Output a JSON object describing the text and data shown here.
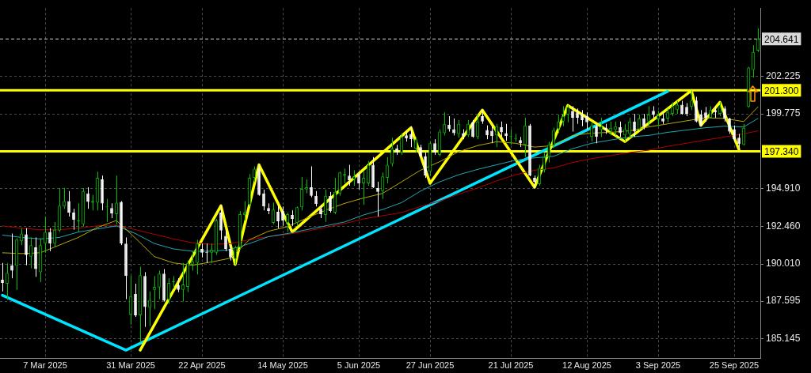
{
  "chart_data": {
    "type": "candlestick",
    "marker": "none",
    "grid": true,
    "colors": [
      "#ffffff",
      "#00c000",
      "#ffffff",
      "#00c000",
      "#00c000",
      "#ffffff",
      "#00c000",
      "#ffffff",
      "#00c000",
      "#00c000",
      "#ffffff",
      "#00c000",
      "#00c000",
      "#00c000",
      "#ffffff",
      "#ffffff",
      "#00c000",
      "#00c000",
      "#ffffff",
      "#00c000",
      "#00c000",
      "#ffffff",
      "#00c000",
      "#ffffff",
      "#00c000",
      "#ffffff",
      "#ffffff",
      "#00c000",
      "#ffffff",
      "#00c000",
      "#ffffff",
      "#00c000",
      "#00c000",
      "#00c000",
      "#ffffff",
      "#00c000",
      "#00c000",
      "#ffffff",
      "#00c000",
      "#00c000",
      "#00c000",
      "#00c000",
      "#ffffff",
      "#ffffff",
      "#00c000",
      "#00c000",
      "#ffffff",
      "#ffffff",
      "#ffffff",
      "#00c000",
      "#00c000",
      "#00c000",
      "#00c000",
      "#00c000",
      "#ffffff",
      "#ffffff",
      "#ffffff",
      "#00c000",
      "#ffffff",
      "#ffffff",
      "#00c000",
      "#ffffff",
      "#00c000",
      "#00c000",
      "#00c000",
      "#ffffff",
      "#ffffff",
      "#ffffff",
      "#00c000",
      "#ffffff",
      "#00c000",
      "#00c000",
      "#00c000",
      "#ffffff",
      "#00c000",
      "#ffffff",
      "#00c000",
      "#00c000",
      "#ffffff",
      "#ffffff",
      "#00c000",
      "#00c000",
      "#00c000",
      "#ffffff",
      "#00c000",
      "#ffffff",
      "#ffffff",
      "#00c000",
      "#ffffff",
      "#ffffff",
      "#00c000",
      "#ffffff",
      "#00c000",
      "#00c000",
      "#ffffff",
      "#ffffff",
      "#00c000",
      "#ffffff",
      "#00c000",
      "#ffffff",
      "#00c000",
      "#ffffff",
      "#ffffff",
      "#ffffff",
      "#00c000",
      "#ffffff",
      "#ffffff",
      "#00c000",
      "#00c000",
      "#ffffff",
      "#00c000",
      "#ffffff",
      "#ffffff",
      "#00c000",
      "#00c000",
      "#00c000",
      "#00c000",
      "#00c000",
      "#00c000",
      "#00c000",
      "#ffffff",
      "#ffffff",
      "#ffffff",
      "#ffffff",
      "#00c000",
      "#ffffff",
      "#00c000",
      "#ffffff",
      "#00c000",
      "#00c000",
      "#ffffff",
      "#00c000",
      "#00c000",
      "#ffffff",
      "#00c000",
      "#ffffff",
      "#00c000",
      "#ffffff",
      "#00c000",
      "#ffffff",
      "#00c000",
      "#00c000",
      "#00c000",
      "#ffffff",
      "#ffffff",
      "#00c000",
      "#ffffff",
      "#ffffff",
      "#ffffff",
      "#00c000",
      "#ffffff",
      "#00c000",
      "#ffffff",
      "#ffffff",
      "#ffffff",
      "#ffffff",
      "#00c000",
      "#00c000",
      "#00c000",
      "#00c000"
    ],
    "categories": [
      null,
      null,
      null,
      null,
      null,
      null,
      null,
      null,
      null,
      "7 Mar 2025",
      null,
      null,
      null,
      null,
      null,
      null,
      null,
      null,
      null,
      null,
      null,
      null,
      null,
      null,
      null,
      null,
      null,
      "31 Mar 2025",
      null,
      null,
      null,
      null,
      null,
      null,
      null,
      null,
      null,
      null,
      null,
      null,
      null,
      null,
      "22 Apr 2025",
      null,
      null,
      null,
      null,
      null,
      null,
      null,
      null,
      null,
      null,
      null,
      null,
      null,
      null,
      null,
      null,
      "14 May 2025",
      null,
      null,
      null,
      null,
      null,
      null,
      null,
      null,
      null,
      null,
      null,
      null,
      null,
      null,
      null,
      "5 Jun 2025",
      null,
      null,
      null,
      null,
      null,
      null,
      null,
      null,
      null,
      null,
      null,
      null,
      null,
      null,
      "27 Jun 2025",
      null,
      null,
      null,
      null,
      null,
      null,
      null,
      null,
      null,
      null,
      null,
      null,
      null,
      null,
      null,
      null,
      "21 Jul 2025",
      null,
      null,
      null,
      null,
      null,
      null,
      null,
      null,
      null,
      null,
      null,
      null,
      null,
      null,
      null,
      "12 Aug 2025",
      null,
      null,
      null,
      null,
      null,
      null,
      null,
      null,
      null,
      null,
      null,
      null,
      null,
      null,
      "3 Sep 2025",
      null,
      null,
      null,
      null,
      null,
      null,
      null,
      null,
      null,
      null,
      null,
      null,
      null,
      null,
      null,
      "25 Sep 2025",
      null,
      null,
      null,
      null,
      null
    ],
    "ohlc": [
      [
        188.98,
        190.08,
        188.23,
        188.78
      ],
      [
        188.73,
        190.08,
        187.67,
        189.43
      ],
      [
        189.93,
        191.99,
        189.08,
        189.58
      ],
      [
        189.88,
        191.69,
        188.33,
        191.59
      ],
      [
        191.49,
        192.34,
        191.24,
        191.99
      ],
      [
        191.94,
        192.34,
        189.93,
        190.59
      ],
      [
        190.49,
        191.74,
        189.73,
        191.24
      ],
      [
        191.09,
        191.74,
        189.18,
        189.68
      ],
      [
        189.48,
        191.69,
        188.83,
        191.24
      ],
      [
        191.34,
        193.1,
        190.74,
        192.09
      ],
      [
        192.09,
        192.34,
        190.84,
        191.34
      ],
      [
        191.34,
        192.74,
        191.09,
        192.24
      ],
      [
        192.19,
        194.95,
        192.09,
        193.8
      ],
      [
        193.75,
        194.95,
        193.6,
        194.1
      ],
      [
        194.1,
        194.75,
        193.1,
        193.35
      ],
      [
        193.35,
        193.6,
        192.24,
        192.89
      ],
      [
        192.79,
        193.95,
        192.09,
        192.84
      ],
      [
        192.59,
        194.95,
        192.44,
        194.75
      ],
      [
        194.6,
        195.0,
        193.6,
        194.05
      ],
      [
        194.0,
        194.5,
        193.5,
        194.1
      ],
      [
        194.0,
        196.01,
        193.5,
        195.61
      ],
      [
        195.51,
        195.76,
        193.5,
        193.95
      ],
      [
        193.7,
        194.25,
        192.74,
        193.75
      ],
      [
        193.65,
        193.95,
        192.99,
        193.3
      ],
      [
        193.25,
        195.76,
        192.59,
        194.0
      ],
      [
        194.05,
        194.1,
        191.24,
        191.34
      ],
      [
        191.34,
        191.74,
        187.72,
        189.23
      ],
      [
        186.72,
        189.23,
        186.07,
        187.92
      ],
      [
        188.08,
        188.73,
        186.57,
        186.67
      ],
      [
        186.67,
        189.83,
        184.91,
        189.28
      ],
      [
        189.23,
        189.48,
        185.92,
        187.22
      ],
      [
        187.17,
        188.23,
        185.97,
        187.67
      ],
      [
        188.33,
        189.23,
        187.07,
        188.53
      ],
      [
        188.48,
        189.58,
        187.72,
        189.38
      ],
      [
        189.38,
        189.68,
        187.57,
        187.62
      ],
      [
        187.67,
        189.08,
        187.42,
        188.78
      ],
      [
        188.83,
        189.23,
        188.43,
        188.88
      ],
      [
        188.63,
        189.08,
        188.18,
        188.33
      ],
      [
        188.33,
        190.08,
        187.57,
        188.68
      ],
      [
        188.53,
        190.24,
        188.18,
        190.08
      ],
      [
        189.98,
        190.84,
        189.58,
        190.18
      ],
      [
        190.08,
        191.59,
        189.33,
        191.34
      ],
      [
        190.99,
        191.34,
        190.44,
        190.74
      ],
      [
        190.79,
        191.34,
        190.08,
        190.74
      ],
      [
        190.74,
        191.34,
        190.08,
        190.94
      ],
      [
        190.74,
        192.94,
        190.59,
        192.84
      ],
      [
        193.35,
        193.8,
        191.59,
        192.19
      ],
      [
        191.84,
        192.24,
        190.84,
        190.99
      ],
      [
        190.99,
        191.24,
        190.24,
        190.44
      ],
      [
        190.34,
        191.19,
        189.98,
        191.09
      ],
      [
        191.09,
        193.45,
        190.94,
        193.25
      ],
      [
        193.2,
        194.1,
        192.84,
        193.35
      ],
      [
        193.85,
        195.86,
        193.75,
        195.61
      ],
      [
        195.61,
        196.36,
        195.35,
        196.21
      ],
      [
        196.21,
        196.46,
        194.45,
        194.5
      ],
      [
        194.6,
        194.85,
        193.5,
        193.75
      ],
      [
        193.65,
        193.95,
        193.25,
        193.45
      ],
      [
        192.69,
        194.0,
        192.59,
        193.55
      ],
      [
        193.4,
        193.85,
        192.34,
        192.79
      ],
      [
        193.45,
        193.75,
        192.49,
        192.84
      ],
      [
        192.69,
        193.35,
        192.09,
        193.25
      ],
      [
        193.2,
        193.5,
        192.49,
        192.94
      ],
      [
        192.69,
        193.75,
        192.49,
        193.7
      ],
      [
        193.7,
        195.66,
        193.5,
        194.9
      ],
      [
        194.85,
        195.51,
        194.6,
        195.0
      ],
      [
        195.0,
        196.36,
        194.35,
        194.45
      ],
      [
        194.45,
        194.75,
        193.75,
        193.9
      ],
      [
        193.6,
        193.85,
        192.99,
        193.25
      ],
      [
        193.2,
        194.85,
        192.74,
        194.45
      ],
      [
        194.45,
        194.7,
        193.35,
        193.45
      ],
      [
        193.35,
        195.61,
        193.25,
        194.7
      ],
      [
        194.6,
        196.01,
        194.45,
        195.96
      ],
      [
        195.76,
        196.21,
        195.25,
        195.86
      ],
      [
        195.76,
        196.46,
        195.1,
        195.46
      ],
      [
        195.51,
        196.11,
        195.1,
        195.71
      ],
      [
        195.86,
        196.01,
        194.85,
        195.25
      ],
      [
        195.25,
        196.01,
        193.85,
        195.61
      ],
      [
        195.25,
        196.71,
        195.1,
        196.46
      ],
      [
        196.46,
        196.96,
        194.95,
        195.0
      ],
      [
        194.95,
        195.35,
        193.1,
        194.7
      ],
      [
        194.75,
        195.96,
        194.25,
        195.71
      ],
      [
        195.61,
        196.96,
        195.25,
        196.46
      ],
      [
        196.51,
        198.22,
        196.36,
        197.51
      ],
      [
        197.51,
        197.76,
        197.11,
        197.26
      ],
      [
        197.26,
        198.52,
        197.11,
        198.27
      ],
      [
        198.37,
        198.62,
        197.97,
        198.17
      ],
      [
        198.47,
        198.97,
        197.61,
        198.12
      ],
      [
        197.51,
        198.27,
        197.26,
        198.12
      ],
      [
        197.61,
        197.76,
        196.96,
        197.01
      ],
      [
        197.01,
        197.26,
        195.61,
        195.76
      ],
      [
        196.01,
        197.97,
        195.76,
        197.86
      ],
      [
        197.86,
        198.12,
        197.11,
        197.26
      ],
      [
        197.11,
        198.77,
        197.01,
        198.62
      ],
      [
        198.52,
        199.87,
        198.37,
        199.12
      ],
      [
        199.07,
        199.62,
        198.62,
        198.77
      ],
      [
        198.77,
        199.47,
        198.37,
        198.52
      ],
      [
        198.47,
        199.37,
        198.22,
        199.12
      ],
      [
        198.52,
        198.77,
        198.12,
        198.32
      ],
      [
        198.37,
        199.37,
        198.27,
        199.12
      ],
      [
        199.22,
        199.37,
        198.22,
        198.27
      ],
      [
        198.27,
        199.72,
        198.12,
        199.27
      ],
      [
        199.62,
        200.02,
        199.12,
        199.27
      ],
      [
        198.72,
        199.02,
        198.12,
        198.37
      ],
      [
        198.67,
        199.02,
        197.86,
        198.32
      ],
      [
        198.37,
        199.12,
        197.61,
        198.97
      ],
      [
        198.92,
        199.27,
        198.27,
        198.57
      ],
      [
        198.52,
        199.12,
        198.02,
        198.32
      ],
      [
        198.27,
        198.77,
        197.76,
        198.32
      ],
      [
        198.12,
        198.47,
        197.97,
        198.17
      ],
      [
        198.07,
        198.27,
        197.61,
        197.86
      ],
      [
        197.76,
        199.52,
        196.96,
        199.02
      ],
      [
        199.02,
        199.12,
        195.71,
        195.76
      ],
      [
        195.61,
        195.76,
        194.95,
        195.36
      ],
      [
        195.2,
        196.46,
        195.1,
        196.26
      ],
      [
        196.11,
        197.26,
        195.96,
        196.96
      ],
      [
        196.96,
        197.96,
        196.61,
        197.76
      ],
      [
        197.71,
        198.87,
        197.61,
        198.72
      ],
      [
        198.77,
        199.72,
        198.52,
        199.27
      ],
      [
        199.27,
        200.27,
        198.97,
        199.62
      ],
      [
        199.72,
        200.32,
        199.22,
        200.22
      ],
      [
        199.97,
        200.27,
        198.62,
        199.52
      ],
      [
        199.87,
        200.12,
        199.12,
        199.52
      ],
      [
        199.72,
        200.02,
        198.97,
        199.37
      ],
      [
        199.62,
        199.87,
        198.77,
        199.22
      ],
      [
        198.27,
        199.27,
        197.97,
        199.02
      ],
      [
        198.97,
        199.12,
        197.86,
        198.27
      ],
      [
        198.72,
        199.52,
        198.27,
        198.97
      ],
      [
        198.87,
        199.12,
        198.47,
        198.72
      ],
      [
        198.62,
        199.27,
        198.37,
        198.87
      ],
      [
        198.72,
        199.27,
        198.37,
        198.97
      ],
      [
        198.92,
        199.27,
        198.27,
        198.52
      ],
      [
        198.37,
        199.12,
        197.97,
        198.77
      ],
      [
        198.47,
        199.52,
        198.22,
        199.27
      ],
      [
        199.27,
        199.77,
        198.27,
        198.62
      ],
      [
        198.77,
        199.72,
        198.72,
        199.47
      ],
      [
        199.47,
        199.77,
        198.77,
        198.97
      ],
      [
        199.27,
        200.27,
        198.97,
        199.72
      ],
      [
        199.97,
        200.27,
        199.47,
        199.72
      ],
      [
        199.42,
        199.97,
        198.97,
        199.67
      ],
      [
        199.47,
        199.87,
        199.12,
        199.27
      ],
      [
        199.47,
        200.12,
        199.22,
        199.87
      ],
      [
        199.77,
        200.52,
        199.62,
        200.27
      ],
      [
        200.02,
        200.62,
        199.77,
        200.37
      ],
      [
        200.37,
        200.62,
        199.72,
        199.77
      ],
      [
        200.22,
        200.47,
        199.62,
        199.77
      ],
      [
        200.22,
        201.28,
        200.02,
        200.63
      ],
      [
        200.63,
        200.88,
        199.22,
        199.27
      ],
      [
        199.72,
        200.02,
        198.97,
        199.02
      ],
      [
        199.87,
        200.22,
        199.27,
        199.52
      ],
      [
        199.52,
        200.27,
        199.47,
        200.02
      ],
      [
        200.02,
        200.27,
        199.52,
        199.87
      ],
      [
        199.77,
        200.53,
        199.62,
        200.22
      ],
      [
        200.12,
        200.27,
        199.27,
        199.47
      ],
      [
        199.47,
        199.52,
        198.47,
        198.62
      ],
      [
        198.77,
        199.02,
        197.97,
        198.12
      ],
      [
        198.22,
        198.47,
        197.46,
        197.81
      ],
      [
        197.76,
        199.12,
        197.71,
        198.87
      ],
      [
        200.22,
        202.83,
        200.17,
        202.78
      ],
      [
        202.63,
        204.24,
        202.13,
        203.79
      ],
      [
        203.89,
        205.34,
        203.79,
        204.641
      ]
    ],
    "series": [
      {
        "type": "line",
        "color": "#b8a800",
        "values": [
          190.74,
          null,
          null,
          null,
          190.69,
          null,
          null,
          null,
          190.74,
          null,
          null,
          null,
          191.24,
          null,
          null,
          null,
          191.74,
          null,
          null,
          null,
          192.39,
          null,
          null,
          null,
          192.84,
          null,
          null,
          null,
          191.69,
          null,
          null,
          null,
          190.49,
          null,
          null,
          null,
          190.08,
          null,
          null,
          null,
          189.93,
          null,
          null,
          null,
          190.14,
          null,
          null,
          null,
          190.39,
          null,
          null,
          null,
          191.59,
          null,
          null,
          null,
          192.14,
          null,
          null,
          null,
          192.44,
          null,
          null,
          null,
          192.99,
          null,
          null,
          null,
          193.5,
          null,
          null,
          null,
          193.95,
          null,
          null,
          null,
          194.3,
          null,
          null,
          null,
          194.6,
          null,
          null,
          null,
          195.35,
          null,
          null,
          null,
          196.11,
          null,
          null,
          null,
          196.66,
          null,
          null,
          null,
          197.31,
          null,
          null,
          null,
          197.71,
          null,
          null,
          null,
          197.96,
          null,
          null,
          null,
          197.86,
          null,
          null,
          null,
          197.61,
          null,
          null,
          null,
          197.71,
          null,
          null,
          null,
          198.37,
          null,
          null,
          null,
          198.52,
          null,
          null,
          null,
          198.57,
          null,
          null,
          null,
          198.67,
          null,
          null,
          null,
          198.92,
          null,
          null,
          null,
          199.12,
          null,
          null,
          null,
          199.32,
          null,
          null,
          null,
          199.52,
          null,
          null,
          null,
          199.47,
          null,
          null,
          null,
          199.27,
          null,
          null,
          200.22
        ]
      },
      {
        "type": "line",
        "color": "#1fa8b0",
        "values": [
          191.89,
          null,
          null,
          null,
          191.74,
          null,
          null,
          null,
          191.64,
          null,
          null,
          null,
          191.74,
          null,
          null,
          null,
          192.09,
          null,
          null,
          null,
          192.29,
          null,
          null,
          null,
          192.49,
          null,
          null,
          null,
          191.99,
          null,
          null,
          null,
          191.34,
          null,
          null,
          null,
          190.99,
          null,
          null,
          null,
          190.84,
          null,
          null,
          null,
          190.84,
          null,
          null,
          null,
          190.94,
          null,
          null,
          null,
          191.34,
          null,
          null,
          null,
          191.79,
          null,
          null,
          null,
          191.99,
          null,
          null,
          null,
          192.24,
          null,
          null,
          null,
          192.49,
          null,
          null,
          null,
          192.74,
          null,
          null,
          null,
          193.2,
          null,
          null,
          null,
          193.55,
          null,
          null,
          null,
          194.0,
          null,
          null,
          null,
          194.75,
          null,
          null,
          null,
          195.35,
          null,
          null,
          null,
          195.81,
          null,
          null,
          null,
          196.16,
          null,
          null,
          null,
          196.46,
          null,
          null,
          null,
          196.76,
          null,
          null,
          null,
          196.91,
          null,
          null,
          null,
          197.01,
          null,
          null,
          null,
          197.51,
          null,
          null,
          null,
          197.86,
          null,
          null,
          null,
          198.07,
          null,
          null,
          null,
          198.27,
          null,
          null,
          null,
          198.37,
          null,
          null,
          null,
          198.57,
          null,
          null,
          null,
          198.72,
          null,
          null,
          null,
          198.87,
          null,
          null,
          null,
          198.97,
          null,
          null,
          null,
          198.92,
          null,
          null,
          199.47
        ]
      },
      {
        "type": "line",
        "color": "#b00000",
        "values": [
          192.49,
          null,
          null,
          null,
          192.34,
          null,
          null,
          null,
          192.24,
          null,
          null,
          null,
          192.24,
          null,
          null,
          null,
          192.34,
          null,
          null,
          null,
          192.49,
          null,
          null,
          null,
          192.54,
          null,
          null,
          null,
          192.24,
          null,
          null,
          null,
          191.94,
          null,
          null,
          null,
          191.64,
          null,
          null,
          null,
          191.39,
          null,
          null,
          null,
          191.29,
          null,
          null,
          null,
          191.34,
          null,
          null,
          null,
          191.59,
          null,
          null,
          null,
          191.79,
          null,
          null,
          null,
          191.94,
          null,
          null,
          null,
          192.14,
          null,
          null,
          null,
          192.39,
          null,
          null,
          null,
          192.64,
          null,
          null,
          null,
          192.94,
          null,
          null,
          null,
          193.15,
          null,
          null,
          null,
          193.35,
          null,
          null,
          null,
          193.75,
          null,
          null,
          null,
          194.1,
          null,
          null,
          null,
          194.55,
          null,
          null,
          null,
          194.95,
          null,
          null,
          null,
          195.41,
          null,
          null,
          null,
          195.81,
          null,
          null,
          null,
          196.11,
          null,
          null,
          null,
          196.26,
          null,
          null,
          null,
          196.61,
          null,
          null,
          null,
          196.86,
          null,
          null,
          null,
          197.06,
          null,
          null,
          null,
          197.26,
          null,
          null,
          null,
          197.41,
          null,
          null,
          null,
          197.66,
          null,
          null,
          null,
          197.86,
          null,
          null,
          null,
          198.07,
          null,
          null,
          null,
          198.27,
          null,
          null,
          null,
          198.47,
          null,
          null,
          198.67
        ]
      },
      {
        "type": "line",
        "color": "#ffff00",
        "values": [
          null,
          null,
          null,
          null,
          null,
          null,
          null,
          null,
          null,
          null,
          null,
          null,
          null,
          null,
          null,
          null,
          null,
          null,
          null,
          null,
          null,
          null,
          null,
          null,
          null,
          null,
          null,
          null,
          null,
          184.41,
          null,
          null,
          null,
          null,
          null,
          null,
          null,
          null,
          null,
          null,
          null,
          null,
          null,
          null,
          null,
          null,
          193.8,
          null,
          null,
          189.98,
          null,
          null,
          null,
          null,
          196.46,
          null,
          null,
          null,
          null,
          null,
          null,
          192.09,
          null,
          null,
          null,
          null,
          null,
          null,
          null,
          null,
          null,
          null,
          null,
          null,
          null,
          null,
          null,
          null,
          null,
          null,
          null,
          null,
          null,
          null,
          null,
          null,
          198.87,
          null,
          null,
          null,
          195.26,
          null,
          null,
          null,
          null,
          null,
          null,
          null,
          null,
          null,
          null,
          200.02,
          null,
          null,
          null,
          null,
          null,
          null,
          null,
          null,
          null,
          null,
          195.0,
          null,
          null,
          null,
          null,
          null,
          null,
          200.32,
          null,
          null,
          null,
          null,
          null,
          null,
          null,
          null,
          null,
          null,
          null,
          197.97,
          null,
          null,
          null,
          null,
          null,
          null,
          null,
          null,
          null,
          null,
          null,
          null,
          null,
          201.28,
          null,
          199.02,
          null,
          null,
          null,
          200.53,
          null,
          null,
          null,
          197.46,
          null,
          null,
          null,
          null
        ]
      },
      {
        "type": "line",
        "color": "#00e5ff",
        "values": [
          187.98,
          null,
          null,
          null,
          null,
          null,
          null,
          null,
          null,
          null,
          null,
          null,
          null,
          null,
          null,
          null,
          null,
          null,
          null,
          null,
          null,
          null,
          null,
          null,
          null,
          null,
          184.41,
          null,
          null,
          null,
          null,
          null,
          null,
          null,
          null,
          null,
          null,
          null,
          null,
          null,
          null,
          null,
          null,
          null,
          null,
          null,
          null,
          null,
          null,
          null,
          null,
          null,
          null,
          null,
          null,
          null,
          null,
          null,
          null,
          null,
          null,
          null,
          null,
          null,
          null,
          null,
          null,
          null,
          null,
          null,
          null,
          null,
          null,
          null,
          null,
          null,
          null,
          null,
          null,
          null,
          null,
          null,
          null,
          null,
          null,
          null,
          null,
          null,
          null,
          null,
          null,
          null,
          null,
          null,
          null,
          null,
          null,
          null,
          null,
          null,
          null,
          null,
          null,
          null,
          null,
          null,
          null,
          null,
          null,
          null,
          null,
          null,
          null,
          null,
          null,
          null,
          null,
          null,
          null,
          null,
          null,
          null,
          null,
          null,
          null,
          null,
          null,
          null,
          null,
          null,
          null,
          null,
          null,
          null,
          null,
          null,
          null,
          null,
          null,
          null,
          201.23,
          null,
          null,
          null,
          null,
          null,
          null,
          null,
          null,
          null,
          null,
          null,
          null,
          null,
          null,
          null,
          null,
          null,
          null,
          null
        ]
      }
    ],
    "ylim": [
      183.9,
      206.65
    ],
    "yticks": [
      185.145,
      187.595,
      {
        "value": 190.01,
        "label": "190.010"
      },
      {
        "value": 192.46,
        "label": "192.460"
      },
      {
        "value": 194.91,
        "label": "194.910"
      },
      199.775,
      202.225
    ],
    "ref_lines": [
      {
        "axis": "y",
        "value": 201.3,
        "label": "201.300",
        "color": "#ffff00",
        "line_style": "solid"
      },
      {
        "axis": "y",
        "value": 197.34,
        "label": "197.340",
        "color": "#ffff00",
        "line_style": "solid"
      },
      {
        "axis": "y",
        "value": 204.641,
        "label": "204.641",
        "color": "#d8d8d8",
        "line_style": "dashed"
      }
    ]
  }
}
